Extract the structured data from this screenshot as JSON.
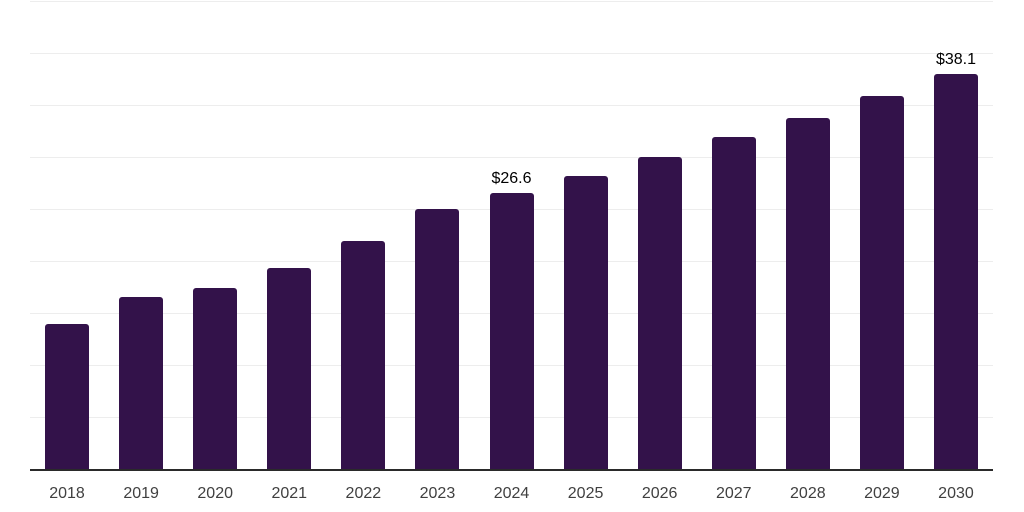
{
  "chart_data": {
    "type": "bar",
    "title": "",
    "xlabel": "",
    "ylabel": "",
    "categories": [
      "2018",
      "2019",
      "2020",
      "2021",
      "2022",
      "2023",
      "2024",
      "2025",
      "2026",
      "2027",
      "2028",
      "2029",
      "2030"
    ],
    "values": [
      14.0,
      16.6,
      17.5,
      19.4,
      22.0,
      25.1,
      26.6,
      28.3,
      30.1,
      32.0,
      33.9,
      36.0,
      38.1
    ],
    "data_labels": [
      "",
      "",
      "",
      "",
      "",
      "",
      "$26.6",
      "",
      "",
      "",
      "",
      "",
      "$38.1"
    ],
    "ylim": [
      0,
      45.2
    ],
    "gridline_step": 5,
    "grid": "horizontal-only",
    "legend": "none",
    "y_tick_labels_visible": false,
    "colors": {
      "bar": "#33124a",
      "gridline": "#ededed",
      "axis_line": "#2a2a2a",
      "tick_label": "#404040",
      "data_label": "#000000",
      "background": "#ffffff"
    }
  }
}
